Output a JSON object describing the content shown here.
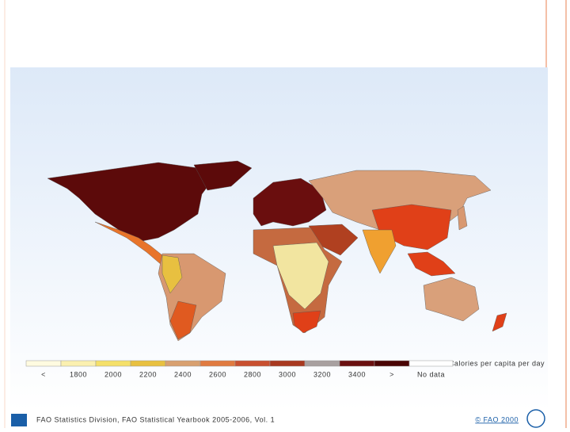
{
  "legend": {
    "title": "Calories per capita per day",
    "items": [
      {
        "label": "<",
        "color": "#fffbe0"
      },
      {
        "label": "1800",
        "color": "#fbf0b0"
      },
      {
        "label": "2000",
        "color": "#f5e06a"
      },
      {
        "label": "2200",
        "color": "#e8c040"
      },
      {
        "label": "2400",
        "color": "#d8a070"
      },
      {
        "label": "2600",
        "color": "#e07a40"
      },
      {
        "label": "2800",
        "color": "#c85030"
      },
      {
        "label": "3000",
        "color": "#a83820"
      },
      {
        "label": "3200",
        "color": "#a8a0a0"
      },
      {
        "label": "3400",
        "color": "#6a1010"
      },
      {
        "label": ">",
        "color": "#4a0505"
      },
      {
        "label": "No data",
        "color": "#ffffff"
      }
    ]
  },
  "footer": {
    "source": "FAO Statistics Division, FAO Statistical Yearbook 2005-2006, Vol. 1",
    "copyright": "© FAO 2000"
  }
}
